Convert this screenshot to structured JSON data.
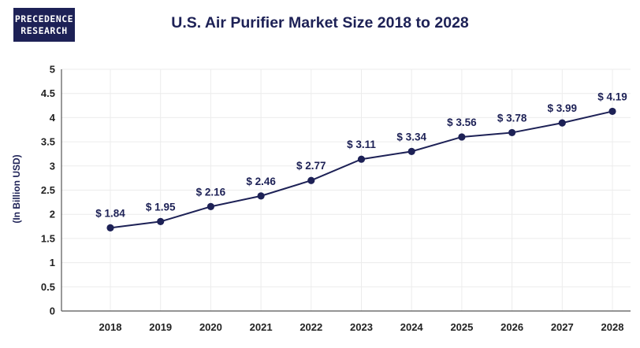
{
  "brand": {
    "line1": "PRECEDENCE",
    "line2": "RESEARCH"
  },
  "colors": {
    "navy": "#1d2156",
    "axis": "#555555",
    "text": "#222222"
  },
  "chart_data": {
    "type": "line",
    "title": "U.S. Air Purifier Market Size 2018 to 2028",
    "xlabel": "",
    "ylabel": "(In Billion USD)",
    "ylim": [
      0,
      5
    ],
    "yticks": [
      "0",
      "0.5",
      "1",
      "1.5",
      "2",
      "2.5",
      "3",
      "3.5",
      "4",
      "4.5",
      "5"
    ],
    "categories": [
      "2018",
      "2019",
      "2020",
      "2021",
      "2022",
      "2023",
      "2024",
      "2025",
      "2026",
      "2027",
      "2028"
    ],
    "values": [
      1.84,
      1.95,
      2.16,
      2.46,
      2.77,
      3.11,
      3.34,
      3.56,
      3.78,
      3.99,
      4.19
    ],
    "plotted_values": [
      1.72,
      1.85,
      2.16,
      2.38,
      2.7,
      3.14,
      3.3,
      3.6,
      3.69,
      3.89,
      4.13
    ],
    "data_labels": [
      "$ 1.84",
      "$ 1.95",
      "$ 2.16",
      "$ 2.46",
      "$ 2.77",
      "$ 3.11",
      "$ 3.34",
      "$ 3.56",
      "$ 3.78",
      "$ 3.99",
      "$ 4.19"
    ],
    "grid": true,
    "legend": "none"
  }
}
